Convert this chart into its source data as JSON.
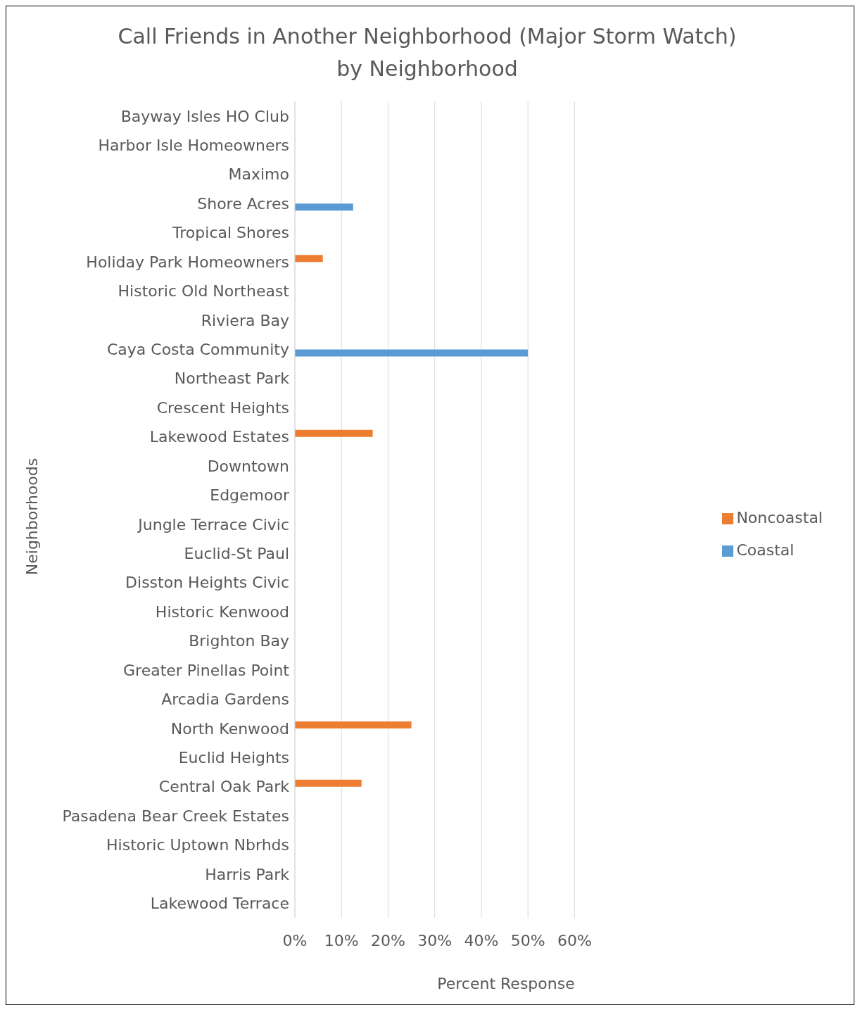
{
  "chart_data": {
    "type": "bar",
    "orientation": "horizontal",
    "title": "Call Friends in Another Neighborhood (Major Storm Watch)\nby Neighborhood",
    "xlabel": "Percent  Response",
    "ylabel": "Neighborhoods",
    "categories": [
      "Bayway Isles HO Club",
      "Harbor Isle Homeowners",
      "Maximo",
      "Shore Acres",
      "Tropical Shores",
      "Holiday Park Homeowners",
      "Historic Old Northeast",
      "Riviera Bay",
      "Caya Costa Community",
      "Northeast Park",
      "Crescent Heights",
      "Lakewood Estates",
      "Downtown",
      "Edgemoor",
      "Jungle Terrace Civic",
      "Euclid-St Paul",
      "Disston Heights Civic",
      "Historic Kenwood",
      "Brighton Bay",
      "Greater Pinellas Point",
      "Arcadia Gardens",
      "North Kenwood",
      "Euclid Heights",
      "Central Oak Park",
      "Pasadena Bear Creek Estates",
      "Historic Uptown Nbrhds",
      "Harris Park",
      "Lakewood Terrace"
    ],
    "series": [
      {
        "name": "Noncoastal",
        "color": "#ed7d31",
        "values": [
          null,
          null,
          null,
          null,
          null,
          6,
          null,
          null,
          null,
          null,
          null,
          16.7,
          null,
          null,
          null,
          null,
          null,
          null,
          null,
          null,
          null,
          25,
          null,
          14.3,
          null,
          null,
          null,
          null
        ]
      },
      {
        "name": "Coastal",
        "color": "#5b9bd5",
        "values": [
          null,
          null,
          null,
          12.5,
          null,
          null,
          null,
          null,
          50,
          null,
          null,
          null,
          null,
          null,
          null,
          null,
          null,
          null,
          null,
          null,
          null,
          null,
          null,
          null,
          null,
          null,
          null,
          null
        ]
      }
    ],
    "xlim": [
      0,
      60
    ],
    "xticks": [
      {
        "value": 0,
        "label": "0%"
      },
      {
        "value": 10,
        "label": "10%"
      },
      {
        "value": 20,
        "label": "20%"
      },
      {
        "value": 30,
        "label": "30%"
      },
      {
        "value": 40,
        "label": "40%"
      },
      {
        "value": 50,
        "label": "50%"
      },
      {
        "value": 60,
        "label": "60%"
      }
    ],
    "grid": "x",
    "legend": "right"
  }
}
